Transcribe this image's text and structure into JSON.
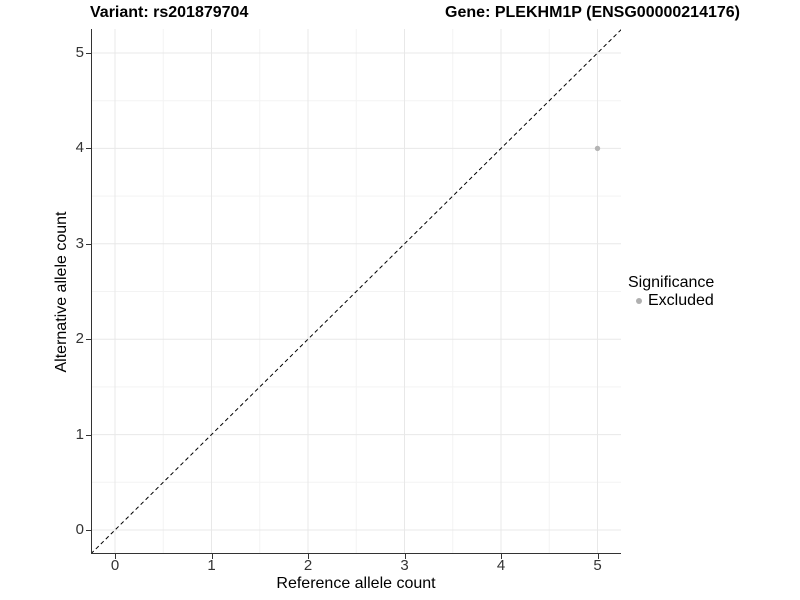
{
  "header": {
    "variant_title": "Variant: rs201879704",
    "gene_title": "Gene: PLEKHM1P (ENSG00000214176)"
  },
  "chart_data": {
    "type": "scatter",
    "xlabel": "Reference allele count",
    "ylabel": "Alternative allele count",
    "xlim": [
      -0.25,
      5.25
    ],
    "ylim": [
      -0.25,
      5.25
    ],
    "xticks": [
      0,
      1,
      2,
      3,
      4,
      5
    ],
    "yticks": [
      0,
      1,
      2,
      3,
      4,
      5
    ],
    "grid": {
      "major": true,
      "minor": true
    },
    "reference_line": {
      "type": "identity y=x",
      "style": "dashed",
      "color": "#000000"
    },
    "series": [
      {
        "name": "Excluded",
        "color": "#b4b4b4",
        "points": [
          {
            "x": 5,
            "y": 4
          }
        ]
      }
    ],
    "legend_position": "right"
  },
  "legend": {
    "title": "Significance",
    "items": [
      {
        "label": "Excluded",
        "dot_color": "#b0b0b0"
      }
    ]
  },
  "colors": {
    "grid_major": "#e8e8e8",
    "grid_minor": "#f3f3f3",
    "axis": "#333333",
    "tick_label": "#333333"
  }
}
